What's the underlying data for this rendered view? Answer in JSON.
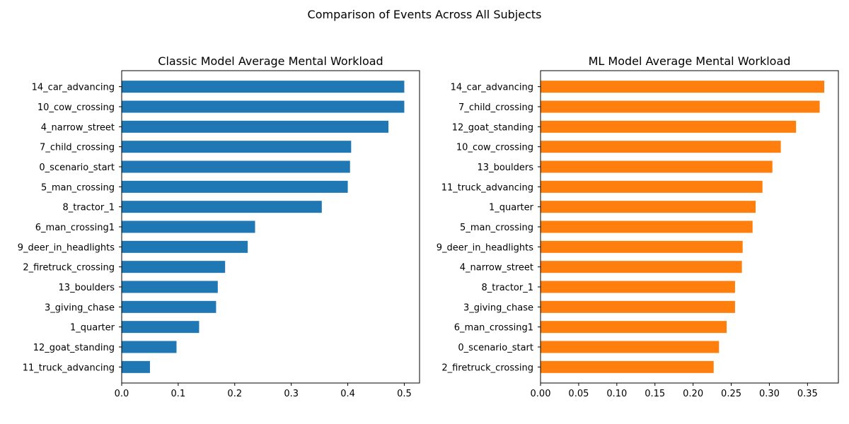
{
  "figure": {
    "suptitle": "Comparison of Events Across All Subjects"
  },
  "chart_data": [
    {
      "type": "bar",
      "orientation": "horizontal",
      "title": "Classic Model Average Mental Workload",
      "xlabel": "",
      "ylabel": "",
      "color": "#1f77b4",
      "xlim": [
        0,
        0.527
      ],
      "xticks": [
        0.0,
        0.1,
        0.2,
        0.3,
        0.4,
        0.5
      ],
      "xtick_labels": [
        "0.0",
        "0.1",
        "0.2",
        "0.3",
        "0.4",
        "0.5"
      ],
      "grid": false,
      "categories": [
        "14_car_advancing",
        "10_cow_crossing",
        "4_narrow_street",
        "7_child_crossing",
        "0_scenario_start",
        "5_man_crossing",
        "8_tractor_1",
        "6_man_crossing1",
        "9_deer_in_headlights",
        "2_firetruck_crossing",
        "13_boulders",
        "3_giving_chase",
        "1_quarter",
        "12_goat_standing",
        "11_truck_advancing"
      ],
      "values": [
        0.5,
        0.5,
        0.472,
        0.406,
        0.404,
        0.4,
        0.354,
        0.236,
        0.223,
        0.183,
        0.17,
        0.167,
        0.137,
        0.097,
        0.05
      ]
    },
    {
      "type": "bar",
      "orientation": "horizontal",
      "title": "ML Model Average Mental Workload",
      "xlabel": "",
      "ylabel": "",
      "color": "#ff7f0e",
      "xlim": [
        0,
        0.3905
      ],
      "xticks": [
        0.0,
        0.05,
        0.1,
        0.15,
        0.2,
        0.25,
        0.3,
        0.35
      ],
      "xtick_labels": [
        "0.00",
        "0.05",
        "0.10",
        "0.15",
        "0.20",
        "0.25",
        "0.30",
        "0.35"
      ],
      "grid": false,
      "categories": [
        "14_car_advancing",
        "7_child_crossing",
        "12_goat_standing",
        "10_cow_crossing",
        "13_boulders",
        "11_truck_advancing",
        "1_quarter",
        "5_man_crossing",
        "9_deer_in_headlights",
        "4_narrow_street",
        "8_tractor_1",
        "3_giving_chase",
        "6_man_crossing1",
        "0_scenario_start",
        "2_firetruck_crossing"
      ],
      "values": [
        0.372,
        0.366,
        0.335,
        0.315,
        0.304,
        0.291,
        0.282,
        0.278,
        0.265,
        0.264,
        0.255,
        0.255,
        0.244,
        0.234,
        0.227
      ]
    }
  ]
}
